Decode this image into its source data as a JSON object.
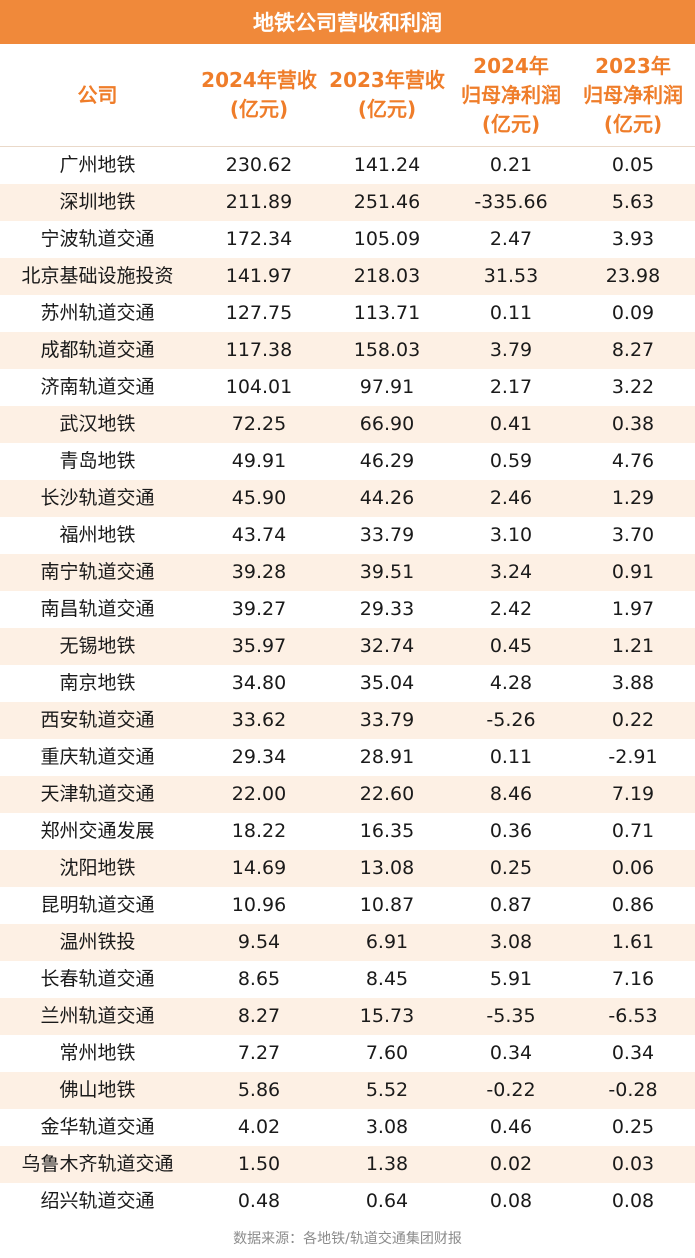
{
  "title": "地铁公司营收和利润",
  "source": "数据来源：各地铁/轨道交通集团财报",
  "chart_data": {
    "type": "table",
    "title": "地铁公司营收和利润",
    "columns": [
      {
        "key": "company",
        "lines": [
          "公司"
        ]
      },
      {
        "key": "rev2024",
        "lines": [
          "2024年营收",
          "(亿元)"
        ]
      },
      {
        "key": "rev2023",
        "lines": [
          "2023年营收",
          "(亿元)"
        ]
      },
      {
        "key": "np2024",
        "lines": [
          "2024年",
          "归母净利润",
          "(亿元)"
        ]
      },
      {
        "key": "np2023",
        "lines": [
          "2023年",
          "归母净利润",
          "(亿元)"
        ]
      }
    ],
    "rows": [
      [
        "广州地铁",
        "230.62",
        "141.24",
        "0.21",
        "0.05"
      ],
      [
        "深圳地铁",
        "211.89",
        "251.46",
        "-335.66",
        "5.63"
      ],
      [
        "宁波轨道交通",
        "172.34",
        "105.09",
        "2.47",
        "3.93"
      ],
      [
        "北京基础设施投资",
        "141.97",
        "218.03",
        "31.53",
        "23.98"
      ],
      [
        "苏州轨道交通",
        "127.75",
        "113.71",
        "0.11",
        "0.09"
      ],
      [
        "成都轨道交通",
        "117.38",
        "158.03",
        "3.79",
        "8.27"
      ],
      [
        "济南轨道交通",
        "104.01",
        "97.91",
        "2.17",
        "3.22"
      ],
      [
        "武汉地铁",
        "72.25",
        "66.90",
        "0.41",
        "0.38"
      ],
      [
        "青岛地铁",
        "49.91",
        "46.29",
        "0.59",
        "4.76"
      ],
      [
        "长沙轨道交通",
        "45.90",
        "44.26",
        "2.46",
        "1.29"
      ],
      [
        "福州地铁",
        "43.74",
        "33.79",
        "3.10",
        "3.70"
      ],
      [
        "南宁轨道交通",
        "39.28",
        "39.51",
        "3.24",
        "0.91"
      ],
      [
        "南昌轨道交通",
        "39.27",
        "29.33",
        "2.42",
        "1.97"
      ],
      [
        "无锡地铁",
        "35.97",
        "32.74",
        "0.45",
        "1.21"
      ],
      [
        "南京地铁",
        "34.80",
        "35.04",
        "4.28",
        "3.88"
      ],
      [
        "西安轨道交通",
        "33.62",
        "33.79",
        "-5.26",
        "0.22"
      ],
      [
        "重庆轨道交通",
        "29.34",
        "28.91",
        "0.11",
        "-2.91"
      ],
      [
        "天津轨道交通",
        "22.00",
        "22.60",
        "8.46",
        "7.19"
      ],
      [
        "郑州交通发展",
        "18.22",
        "16.35",
        "0.36",
        "0.71"
      ],
      [
        "沈阳地铁",
        "14.69",
        "13.08",
        "0.25",
        "0.06"
      ],
      [
        "昆明轨道交通",
        "10.96",
        "10.87",
        "0.87",
        "0.86"
      ],
      [
        "温州铁投",
        "9.54",
        "6.91",
        "3.08",
        "1.61"
      ],
      [
        "长春轨道交通",
        "8.65",
        "8.45",
        "5.91",
        "7.16"
      ],
      [
        "兰州轨道交通",
        "8.27",
        "15.73",
        "-5.35",
        "-6.53"
      ],
      [
        "常州地铁",
        "7.27",
        "7.60",
        "0.34",
        "0.34"
      ],
      [
        "佛山地铁",
        "5.86",
        "5.52",
        "-0.22",
        "-0.28"
      ],
      [
        "金华轨道交通",
        "4.02",
        "3.08",
        "0.46",
        "0.25"
      ],
      [
        "乌鲁木齐轨道交通",
        "1.50",
        "1.38",
        "0.02",
        "0.03"
      ],
      [
        "绍兴轨道交通",
        "0.48",
        "0.64",
        "0.08",
        "0.08"
      ]
    ]
  },
  "colors": {
    "title_bg": "#f0893a",
    "header_text": "#ef7d2a",
    "alt_row_bg": "#fdf0e4",
    "footer_text": "#8c8c8c"
  }
}
